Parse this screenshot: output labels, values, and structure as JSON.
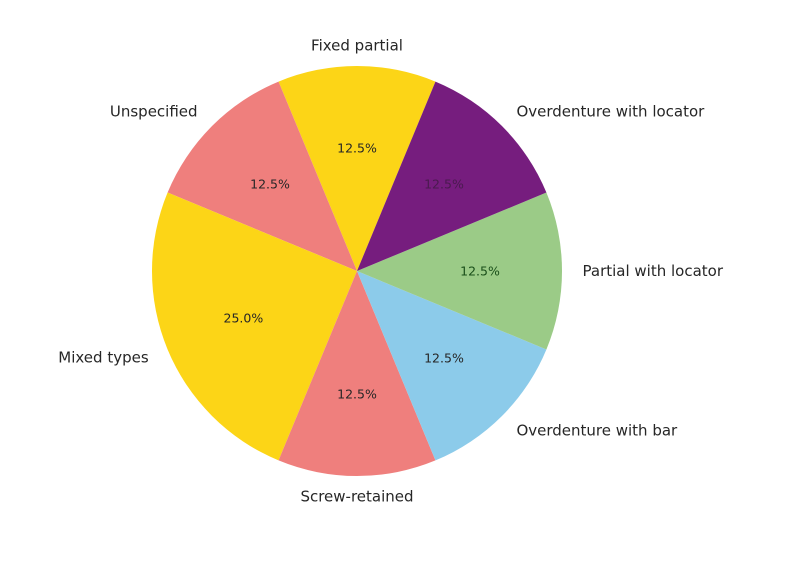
{
  "chart_data": {
    "type": "pie",
    "categories": [
      "Fixed partial",
      "Unspecified",
      "Mixed types",
      "Screw-retained",
      "Overdenture with bar",
      "Partial with locator",
      "Overdenture with locator"
    ],
    "values": [
      12.5,
      12.5,
      25.0,
      12.5,
      12.5,
      12.5,
      12.5
    ],
    "percent_labels": [
      "12.5%",
      "12.5%",
      "25.0%",
      "12.5%",
      "12.5%",
      "12.5%",
      "12.5%"
    ],
    "colors": [
      "#fcd517",
      "#ef7f7d",
      "#fcd517",
      "#ef7f7d",
      "#8ccbea",
      "#9bcb87",
      "#761d7e"
    ],
    "percent_label_colors": [
      "#262626",
      "#262626",
      "#262626",
      "#262626",
      "#262626",
      "#1a4f1a",
      "#4a1a4f"
    ],
    "start_angle_deg": 67.5,
    "direction": "counterclockwise"
  }
}
